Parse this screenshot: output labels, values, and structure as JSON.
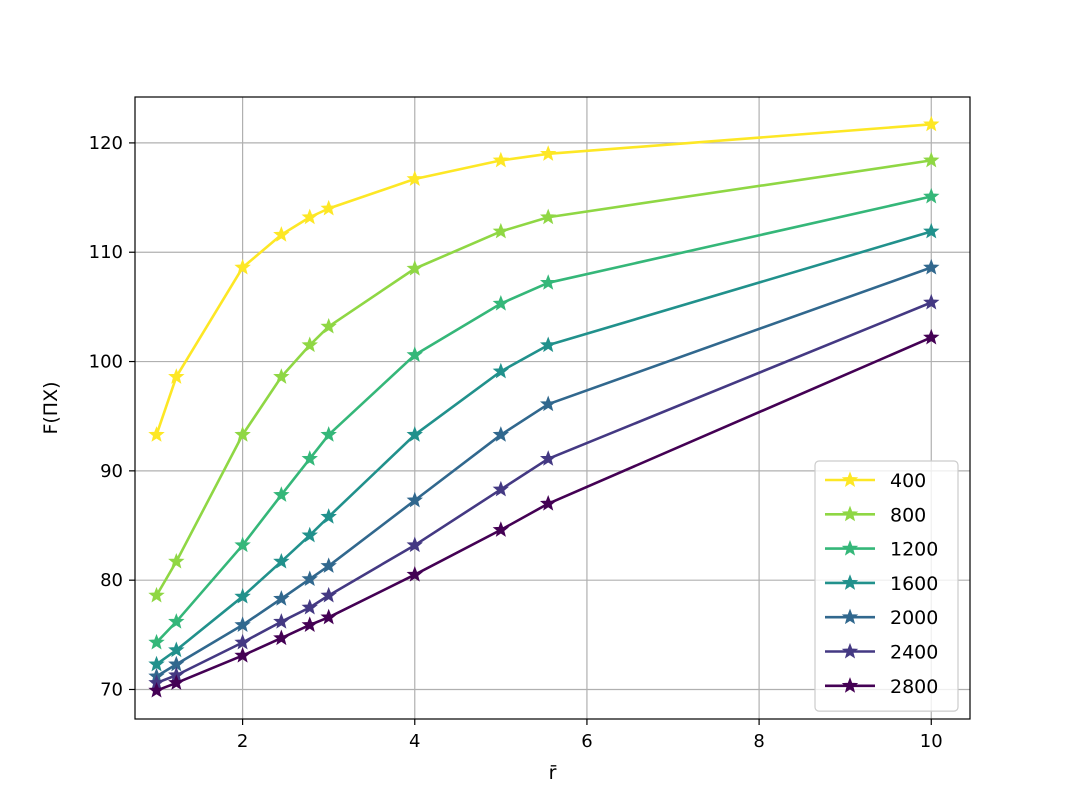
{
  "chart_data": {
    "type": "line",
    "title": "",
    "xlabel": "r̄",
    "ylabel": "F(ΠX)",
    "xlim": [
      0.75,
      10.45
    ],
    "ylim": [
      67.3,
      124.2
    ],
    "xticks": [
      2,
      4,
      6,
      8,
      10
    ],
    "yticks": [
      70,
      80,
      90,
      100,
      110,
      120
    ],
    "grid": true,
    "legend_position": "lower right",
    "x": [
      1.0,
      1.23,
      2.0,
      2.45,
      2.78,
      3.0,
      4.0,
      5.0,
      5.55,
      10.0
    ],
    "series": [
      {
        "name": "400",
        "color": "#fde725",
        "values": [
          93.3,
          98.6,
          108.6,
          111.6,
          113.2,
          114.0,
          116.7,
          118.4,
          119.0,
          121.7
        ]
      },
      {
        "name": "800",
        "color": "#8fd744",
        "values": [
          78.6,
          81.7,
          93.3,
          98.6,
          101.5,
          103.2,
          108.5,
          111.9,
          113.2,
          118.4
        ]
      },
      {
        "name": "1200",
        "color": "#35b779",
        "values": [
          74.3,
          76.2,
          83.2,
          87.8,
          91.1,
          93.3,
          100.6,
          105.3,
          107.2,
          115.1
        ]
      },
      {
        "name": "1600",
        "color": "#21918c",
        "values": [
          72.3,
          73.6,
          78.5,
          81.7,
          84.1,
          85.8,
          93.3,
          99.1,
          101.5,
          111.9
        ]
      },
      {
        "name": "2000",
        "color": "#31688e",
        "values": [
          71.2,
          72.3,
          75.9,
          78.3,
          80.1,
          81.3,
          87.3,
          93.3,
          96.1,
          108.6
        ]
      },
      {
        "name": "2400",
        "color": "#443983",
        "values": [
          70.6,
          71.3,
          74.3,
          76.2,
          77.5,
          78.6,
          83.2,
          88.3,
          91.1,
          105.4
        ]
      },
      {
        "name": "2800",
        "color": "#440154",
        "values": [
          69.9,
          70.6,
          73.1,
          74.7,
          75.9,
          76.6,
          80.5,
          84.6,
          87.0,
          102.2
        ]
      }
    ]
  }
}
